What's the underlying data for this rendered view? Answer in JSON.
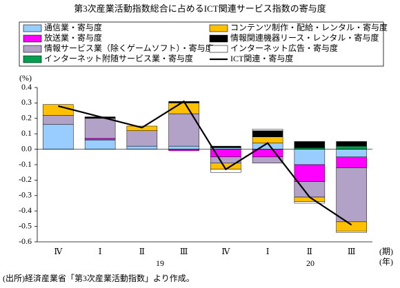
{
  "chart_data": {
    "type": "bar",
    "title": "第3次産業活動指数総合に占めるICT関連サービス指数の寄与度",
    "y_unit": "(%)",
    "categories": [
      "Ⅳ",
      "Ⅰ",
      "Ⅱ",
      "Ⅲ",
      "Ⅳ",
      "Ⅰ",
      "Ⅱ",
      "Ⅲ"
    ],
    "year_labels": [
      "19",
      "20"
    ],
    "x_unit_period": "(期)",
    "x_unit_year": "(年)",
    "source": "(出所)経済産業省「第3次産業活動指数」より作成。",
    "ylim": [
      -0.6,
      0.4
    ],
    "yticks": [
      0.4,
      0.3,
      0.2,
      0.1,
      {
        "value": 0,
        "label": "0.0"
      },
      -0.1,
      -0.2,
      -0.3,
      -0.4,
      -0.5,
      -0.6
    ],
    "series": [
      {
        "name": "通信業・寄与度",
        "color": "#99ccff",
        "values": [
          0.16,
          0.06,
          0.02,
          0.02,
          0.01,
          0.04,
          -0.1,
          -0.05
        ]
      },
      {
        "name": "放送業・寄与度",
        "color": "#ff00ff",
        "values": [
          0,
          0.01,
          0,
          -0.01,
          -0.05,
          -0.05,
          -0.11,
          -0.07
        ]
      },
      {
        "name": "情報サービス業（除くゲームソフト）・寄与度",
        "color": "#b3a2c7",
        "values": [
          0.06,
          0.13,
          0.1,
          0.21,
          -0.04,
          -0.04,
          -0.1,
          -0.35
        ]
      },
      {
        "name": "インターネット附随サービス業・寄与度",
        "color": "#00a050",
        "values": [
          0,
          0,
          0,
          0,
          0,
          0,
          0.01,
          0.02
        ]
      },
      {
        "name": "コンテンツ制作・配給・レンタル・寄与度",
        "color": "#ffc000",
        "values": [
          0.07,
          0,
          0.03,
          0.07,
          -0.04,
          0.04,
          -0.03,
          -0.06
        ]
      },
      {
        "name": "情報関連機器リース・レンタル・寄与度",
        "color": "#000000",
        "values": [
          0,
          0.01,
          0,
          0.01,
          0.01,
          0.04,
          0.04,
          0.03
        ]
      },
      {
        "name": "インターネット広告・寄与度",
        "color": "#ffffff",
        "values": [
          0,
          0,
          0,
          0,
          -0.02,
          0.01,
          -0.01,
          -0.01
        ]
      },
      {
        "name": "ICT関連・寄与度",
        "color": "#000000",
        "type": "line",
        "values": [
          0.28,
          0.21,
          0.14,
          0.31,
          -0.13,
          0.04,
          -0.31,
          -0.49
        ]
      }
    ]
  }
}
